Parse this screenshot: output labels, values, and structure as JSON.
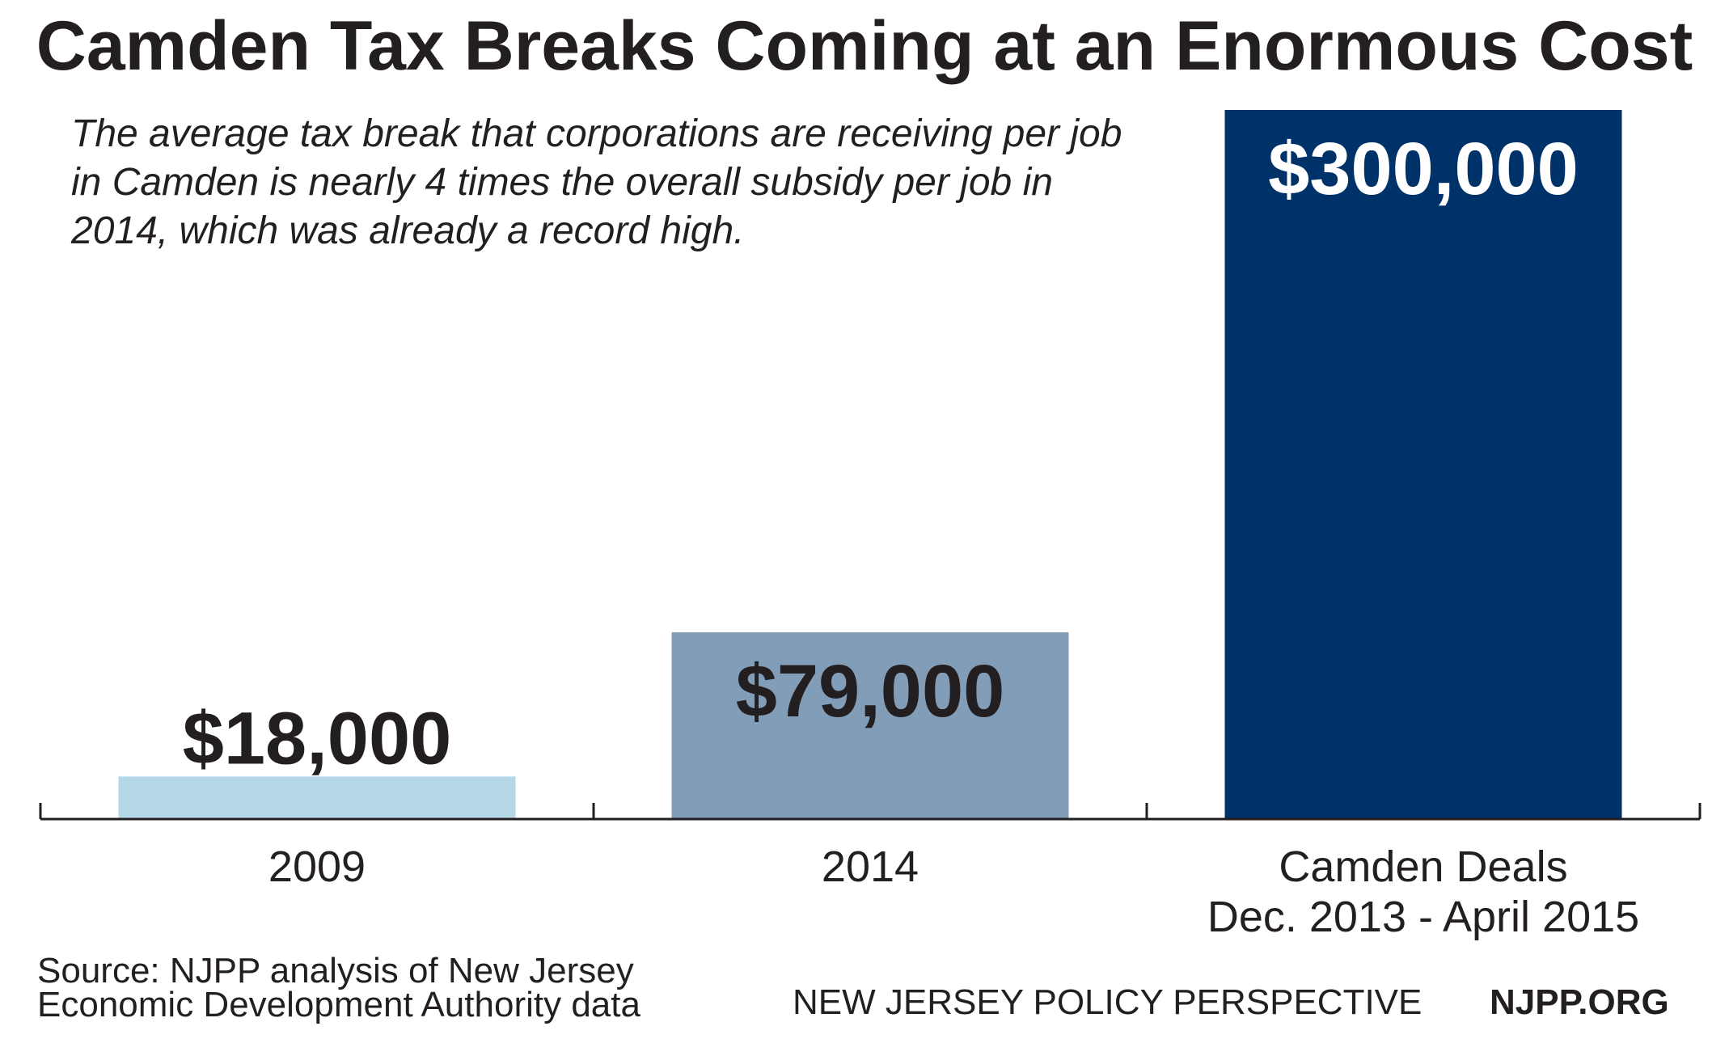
{
  "chart_data": {
    "type": "bar",
    "title": "Camden Tax Breaks Coming at an Enormous Cost",
    "subtitle": "The average tax break that corporations are receiving per job in Camden is nearly 4 times the overall subsidy per job in 2014, which was already a record high.",
    "categories": [
      [
        "2009"
      ],
      [
        "2014"
      ],
      [
        "Camden Deals",
        "Dec. 2013 - April 2015"
      ]
    ],
    "values": [
      18000,
      79000,
      300000
    ],
    "data_labels": [
      "$18,000",
      "$79,000",
      "$300,000"
    ],
    "bar_colors": [
      "#b5d8e9",
      "#819db8",
      "#00326a"
    ],
    "label_colors": [
      "#231f20",
      "#231f20",
      "#ffffff"
    ],
    "label_positions": [
      "above",
      "inside",
      "inside"
    ],
    "ylim": [
      0,
      300000
    ],
    "grid": false,
    "xlabel": "",
    "ylabel": ""
  },
  "footer": {
    "source_lines": [
      "Source: NJPP analysis of New Jersey",
      "Economic Development Authority data"
    ],
    "org_name": "NEW JERSEY POLICY PERSPECTIVE",
    "org_url": "NJPP.ORG"
  }
}
